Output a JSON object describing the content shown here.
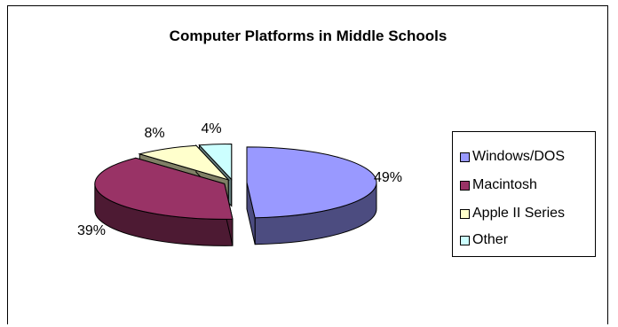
{
  "chart_data": {
    "type": "pie",
    "title": "Computer Platforms in Middle Schools",
    "categories": [
      "Windows/DOS",
      "Macintosh",
      "Apple II Series",
      "Other"
    ],
    "values": [
      49,
      39,
      8,
      4
    ],
    "labels": [
      "49%",
      "39%",
      "8%",
      "4%"
    ],
    "colors": [
      "#9999ff",
      "#993366",
      "#ffffcc",
      "#ccffff"
    ],
    "side_colors": [
      "#4c4c80",
      "#4d1a33",
      "#808066",
      "#668080"
    ],
    "exploded": true,
    "three_d": true,
    "legend_position": "right"
  }
}
